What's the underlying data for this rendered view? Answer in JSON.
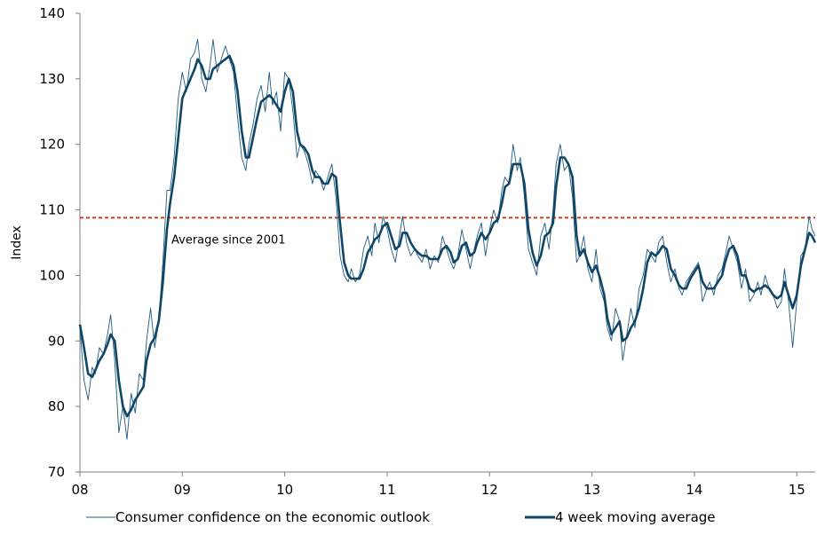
{
  "chart_data": {
    "type": "line",
    "title": "",
    "ylabel": "Index",
    "xlabel": "",
    "ylim": [
      70,
      140
    ],
    "xlim": [
      2008,
      2015.18
    ],
    "yticks": [
      70,
      80,
      90,
      100,
      110,
      120,
      130,
      140
    ],
    "xticks": [
      {
        "value": 2008,
        "label": "08"
      },
      {
        "value": 2009,
        "label": "09"
      },
      {
        "value": 2010,
        "label": "10"
      },
      {
        "value": 2011,
        "label": "11"
      },
      {
        "value": 2012,
        "label": "12"
      },
      {
        "value": 2013,
        "label": "13"
      },
      {
        "value": 2014,
        "label": "14"
      },
      {
        "value": 2015,
        "label": "15"
      }
    ],
    "reference_line": {
      "label": "Average since 2001",
      "value": 108.8,
      "color": "#d03a1f"
    },
    "legend_position": "bottom",
    "series": [
      {
        "name": "Consumer confidence on the economic outlook",
        "color": "#1f5a80",
        "style": "thin",
        "x": [
          2008.0,
          2008.04,
          2008.08,
          2008.12,
          2008.15,
          2008.19,
          2008.23,
          2008.27,
          2008.3,
          2008.34,
          2008.38,
          2008.42,
          2008.46,
          2008.5,
          2008.54,
          2008.58,
          2008.62,
          2008.65,
          2008.69,
          2008.73,
          2008.77,
          2008.81,
          2008.85,
          2008.88,
          2008.92,
          2008.96,
          2009.0,
          2009.04,
          2009.08,
          2009.12,
          2009.15,
          2009.19,
          2009.23,
          2009.27,
          2009.3,
          2009.34,
          2009.38,
          2009.42,
          2009.46,
          2009.5,
          2009.54,
          2009.58,
          2009.62,
          2009.65,
          2009.69,
          2009.73,
          2009.77,
          2009.81,
          2009.85,
          2009.88,
          2009.92,
          2009.96,
          2010.0,
          2010.04,
          2010.08,
          2010.12,
          2010.15,
          2010.19,
          2010.23,
          2010.27,
          2010.3,
          2010.34,
          2010.38,
          2010.42,
          2010.46,
          2010.5,
          2010.54,
          2010.58,
          2010.62,
          2010.65,
          2010.69,
          2010.73,
          2010.77,
          2010.81,
          2010.85,
          2010.88,
          2010.92,
          2010.96,
          2011.0,
          2011.04,
          2011.08,
          2011.12,
          2011.15,
          2011.19,
          2011.23,
          2011.27,
          2011.3,
          2011.34,
          2011.38,
          2011.42,
          2011.46,
          2011.5,
          2011.54,
          2011.58,
          2011.62,
          2011.65,
          2011.69,
          2011.73,
          2011.77,
          2011.81,
          2011.85,
          2011.88,
          2011.92,
          2011.96,
          2012.0,
          2012.04,
          2012.08,
          2012.12,
          2012.15,
          2012.19,
          2012.23,
          2012.27,
          2012.3,
          2012.34,
          2012.38,
          2012.42,
          2012.46,
          2012.5,
          2012.54,
          2012.58,
          2012.62,
          2012.65,
          2012.69,
          2012.73,
          2012.77,
          2012.81,
          2012.85,
          2012.88,
          2012.92,
          2012.96,
          2013.0,
          2013.04,
          2013.08,
          2013.12,
          2013.15,
          2013.19,
          2013.23,
          2013.27,
          2013.3,
          2013.34,
          2013.38,
          2013.42,
          2013.46,
          2013.5,
          2013.54,
          2013.58,
          2013.62,
          2013.65,
          2013.69,
          2013.73,
          2013.77,
          2013.81,
          2013.85,
          2013.88,
          2013.92,
          2013.96,
          2014.0,
          2014.04,
          2014.08,
          2014.12,
          2014.15,
          2014.19,
          2014.23,
          2014.27,
          2014.3,
          2014.34,
          2014.38,
          2014.42,
          2014.46,
          2014.5,
          2014.54,
          2014.58,
          2014.62,
          2014.65,
          2014.69,
          2014.73,
          2014.77,
          2014.81,
          2014.85,
          2014.88,
          2014.92,
          2014.96,
          2015.0,
          2015.04,
          2015.08,
          2015.12,
          2015.15,
          2015.18
        ],
        "values": [
          92,
          84,
          81,
          86,
          85,
          89,
          88,
          91,
          94,
          87,
          76,
          80,
          75,
          82,
          79,
          85,
          84,
          90,
          95,
          89,
          93,
          102,
          113,
          113,
          118,
          127,
          131,
          128,
          133,
          134,
          136,
          130,
          128,
          132,
          136,
          131,
          133,
          135,
          133,
          131,
          124,
          118,
          116,
          120,
          123,
          127,
          129,
          125,
          131,
          126,
          128,
          122,
          131,
          130,
          125,
          118,
          120,
          119,
          117,
          114,
          116,
          115,
          113,
          115,
          117,
          112,
          103,
          100,
          99,
          101,
          99,
          100,
          104,
          106,
          103,
          108,
          105,
          109,
          107,
          104,
          102,
          106,
          109,
          105,
          103,
          104,
          103,
          102,
          104,
          101,
          103,
          102,
          106,
          104,
          102,
          101,
          103,
          107,
          104,
          101,
          104,
          106,
          108,
          103,
          107,
          110,
          108,
          113,
          115,
          114,
          120,
          116,
          118,
          112,
          104,
          102,
          100,
          106,
          108,
          104,
          110,
          117,
          120,
          116,
          117,
          112,
          102,
          103,
          106,
          101,
          99,
          104,
          98,
          96,
          92,
          90,
          95,
          93,
          87,
          91,
          95,
          92,
          98,
          100,
          104,
          103,
          102,
          105,
          106,
          102,
          99,
          101,
          98,
          97,
          99,
          100,
          101,
          102,
          96,
          98,
          99,
          97,
          100,
          101,
          103,
          106,
          104,
          102,
          98,
          101,
          96,
          97,
          99,
          97,
          100,
          98,
          97,
          95,
          96,
          101,
          96,
          89,
          96,
          103,
          104,
          109,
          107,
          106
        ]
      },
      {
        "name": "4 week moving average",
        "color": "#0f4666",
        "style": "thick",
        "x": [
          2008.0,
          2008.04,
          2008.08,
          2008.12,
          2008.15,
          2008.19,
          2008.23,
          2008.27,
          2008.3,
          2008.34,
          2008.38,
          2008.42,
          2008.46,
          2008.5,
          2008.54,
          2008.58,
          2008.62,
          2008.65,
          2008.69,
          2008.73,
          2008.77,
          2008.81,
          2008.85,
          2008.88,
          2008.92,
          2008.96,
          2009.0,
          2009.04,
          2009.08,
          2009.12,
          2009.15,
          2009.19,
          2009.23,
          2009.27,
          2009.3,
          2009.34,
          2009.38,
          2009.42,
          2009.46,
          2009.5,
          2009.54,
          2009.58,
          2009.62,
          2009.65,
          2009.69,
          2009.73,
          2009.77,
          2009.81,
          2009.85,
          2009.88,
          2009.92,
          2009.96,
          2010.0,
          2010.04,
          2010.08,
          2010.12,
          2010.15,
          2010.19,
          2010.23,
          2010.27,
          2010.3,
          2010.34,
          2010.38,
          2010.42,
          2010.46,
          2010.5,
          2010.54,
          2010.58,
          2010.62,
          2010.65,
          2010.69,
          2010.73,
          2010.77,
          2010.81,
          2010.85,
          2010.88,
          2010.92,
          2010.96,
          2011.0,
          2011.04,
          2011.08,
          2011.12,
          2011.15,
          2011.19,
          2011.23,
          2011.27,
          2011.3,
          2011.34,
          2011.38,
          2011.42,
          2011.46,
          2011.5,
          2011.54,
          2011.58,
          2011.62,
          2011.65,
          2011.69,
          2011.73,
          2011.77,
          2011.81,
          2011.85,
          2011.88,
          2011.92,
          2011.96,
          2012.0,
          2012.04,
          2012.08,
          2012.12,
          2012.15,
          2012.19,
          2012.23,
          2012.27,
          2012.3,
          2012.34,
          2012.38,
          2012.42,
          2012.46,
          2012.5,
          2012.54,
          2012.58,
          2012.62,
          2012.65,
          2012.69,
          2012.73,
          2012.77,
          2012.81,
          2012.85,
          2012.88,
          2012.92,
          2012.96,
          2013.0,
          2013.04,
          2013.08,
          2013.12,
          2013.15,
          2013.19,
          2013.23,
          2013.27,
          2013.3,
          2013.34,
          2013.38,
          2013.42,
          2013.46,
          2013.5,
          2013.54,
          2013.58,
          2013.62,
          2013.65,
          2013.69,
          2013.73,
          2013.77,
          2013.81,
          2013.85,
          2013.88,
          2013.92,
          2013.96,
          2014.0,
          2014.04,
          2014.08,
          2014.12,
          2014.15,
          2014.19,
          2014.23,
          2014.27,
          2014.3,
          2014.34,
          2014.38,
          2014.42,
          2014.46,
          2014.5,
          2014.54,
          2014.58,
          2014.62,
          2014.65,
          2014.69,
          2014.73,
          2014.77,
          2014.81,
          2014.85,
          2014.88,
          2014.92,
          2014.96,
          2015.0,
          2015.04,
          2015.08,
          2015.12,
          2015.15,
          2015.18
        ],
        "values": [
          92.5,
          89,
          85,
          84.5,
          85.5,
          87,
          88,
          89.5,
          91,
          90,
          84,
          80,
          78.5,
          79.5,
          81,
          82,
          83,
          87,
          89.5,
          90.5,
          93,
          99,
          107,
          111,
          115,
          121,
          127,
          128.5,
          130,
          131.5,
          133,
          132,
          130,
          130,
          131.5,
          132,
          132.5,
          133,
          133.5,
          132,
          128,
          122,
          118,
          118,
          121,
          124,
          126.5,
          127,
          127.5,
          127,
          126,
          125,
          128,
          130,
          128,
          122,
          120,
          119.5,
          118.5,
          116,
          115,
          115,
          114,
          114,
          115.5,
          115,
          108,
          102,
          100,
          99.5,
          99.5,
          99.5,
          101,
          103.5,
          104.5,
          105.5,
          106,
          107.5,
          108,
          106,
          104,
          104.5,
          106.5,
          106.5,
          105,
          104,
          103.5,
          103,
          103,
          102.5,
          102.5,
          102.5,
          104,
          104.5,
          103.5,
          102,
          102.5,
          104.5,
          105,
          103,
          103.5,
          105,
          106.5,
          105.5,
          106.5,
          108,
          108.5,
          111,
          113.5,
          114,
          117,
          117,
          117,
          114,
          107,
          103.5,
          101.5,
          103,
          106,
          106.5,
          108,
          113.5,
          118,
          118,
          117,
          115,
          106,
          103,
          104,
          102,
          100.5,
          101.5,
          99.5,
          97,
          93.5,
          91,
          92,
          93,
          90,
          90.5,
          92,
          93,
          95,
          98,
          102,
          103.5,
          103,
          103.5,
          104.5,
          104,
          101,
          100,
          98.5,
          98,
          98,
          99.5,
          100.5,
          101.5,
          99,
          98,
          98,
          98,
          99,
          100,
          102,
          104,
          104.5,
          103,
          100,
          100,
          98,
          97.5,
          98,
          98,
          98.5,
          98,
          97,
          96.5,
          97,
          99,
          97,
          95,
          97,
          101.5,
          104,
          106.5,
          106,
          105
        ]
      }
    ]
  }
}
